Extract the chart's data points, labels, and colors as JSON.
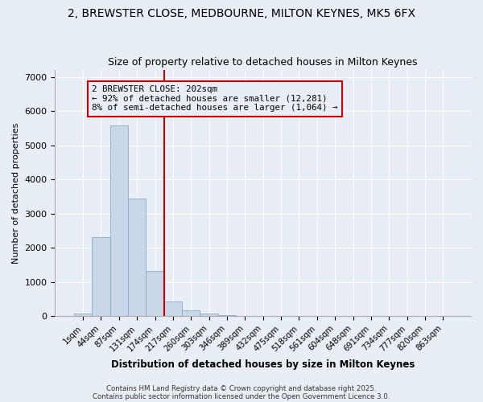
{
  "title1": "2, BREWSTER CLOSE, MEDBOURNE, MILTON KEYNES, MK5 6FX",
  "title2": "Size of property relative to detached houses in Milton Keynes",
  "xlabel": "Distribution of detached houses by size in Milton Keynes",
  "ylabel": "Number of detached properties",
  "bar_labels": [
    "1sqm",
    "44sqm",
    "87sqm",
    "131sqm",
    "174sqm",
    "217sqm",
    "260sqm",
    "303sqm",
    "346sqm",
    "389sqm",
    "432sqm",
    "475sqm",
    "518sqm",
    "561sqm",
    "604sqm",
    "648sqm",
    "691sqm",
    "734sqm",
    "777sqm",
    "820sqm",
    "863sqm"
  ],
  "bar_values": [
    80,
    2300,
    5580,
    3450,
    1320,
    430,
    170,
    80,
    40,
    0,
    0,
    0,
    0,
    0,
    0,
    0,
    0,
    0,
    0,
    0,
    0
  ],
  "bar_color": "#c8d8e8",
  "bar_edgecolor": "#88aac8",
  "vline_x": 4.5,
  "vline_color": "#cc0000",
  "annotation_text": "2 BREWSTER CLOSE: 202sqm\n← 92% of detached houses are smaller (12,281)\n8% of semi-detached houses are larger (1,064) →",
  "box_color": "#cc0000",
  "ylim": [
    0,
    7200
  ],
  "yticks": [
    0,
    1000,
    2000,
    3000,
    4000,
    5000,
    6000,
    7000
  ],
  "background_color": "#e8eef5",
  "grid_color": "#ffffff",
  "footer1": "Contains HM Land Registry data © Crown copyright and database right 2025.",
  "footer2": "Contains public sector information licensed under the Open Government Licence 3.0."
}
